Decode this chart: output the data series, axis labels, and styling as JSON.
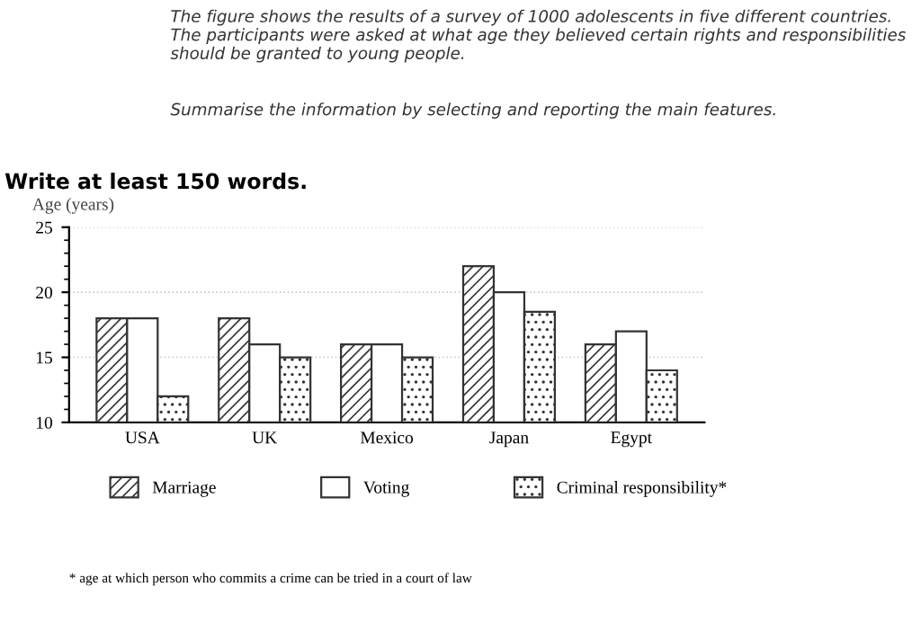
{
  "chart_data": {
    "type": "bar",
    "title": "The figure shows the results of a survey of 1000 adolescents in five different countries. The participants were asked at what age they believed certain rights and responsibilities should be granted to young people.",
    "subtitle": "Summarise the information by selecting and reporting the main features.",
    "annotations": [
      "Write at least 150 words.",
      "* age at which person who commits a crime can be tried in a court of law"
    ],
    "ylabel": "Age (years)",
    "categories": [
      "USA",
      "UK",
      "Mexico",
      "Japan",
      "Egypt"
    ],
    "series": [
      {
        "name": "Marriage",
        "color": "#333333",
        "values": [
          18,
          18,
          16,
          22,
          16
        ]
      },
      {
        "name": "Voting",
        "color": "#333333",
        "values": [
          18,
          16,
          16,
          20,
          17
        ]
      },
      {
        "name": "Criminal responsibility*",
        "color": "#333333",
        "values": [
          12,
          15,
          15,
          18.5,
          14
        ]
      }
    ],
    "ylim": [
      10,
      25
    ],
    "yticks": [
      10,
      15,
      20,
      25
    ],
    "grid": true,
    "legend": "bottom"
  }
}
